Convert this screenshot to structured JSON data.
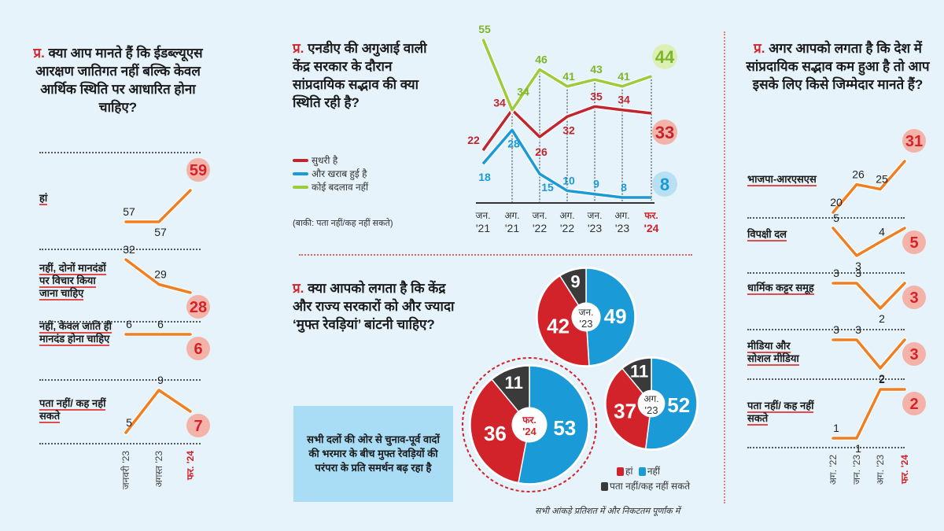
{
  "colors": {
    "red": "#d2232a",
    "orange": "#f07f22",
    "blue": "#1a9ad6",
    "green": "#9ccc3c",
    "darkred": "#b5202a",
    "grey": "#3a3a3a",
    "bubble": "#f4b3a8"
  },
  "prefix": "प्र.",
  "left": {
    "question": "क्या आप मानते हैं कि ईडब्ल्यूएस आरक्षण जातिगत नहीं बल्कि केवल आर्थिक स्थिति पर आधारित होना चाहिए?",
    "x_labels": [
      "जनवरी '23",
      "अगस्त '23",
      "फर. '24"
    ],
    "rows": [
      {
        "label": "हां",
        "values": [
          57,
          57,
          59
        ]
      },
      {
        "label": "नहीं, दोनों मानदंडों पर विचार किया जाना चाहिए",
        "values": [
          32,
          29,
          28
        ]
      },
      {
        "label": "नहीं, केवल जाति ही मानदंड होना चाहिए",
        "values": [
          6,
          6,
          6
        ]
      },
      {
        "label": "पता नहीं/ कह नहीं सकते",
        "values": [
          5,
          9,
          7
        ]
      }
    ]
  },
  "middle": {
    "question": "एनडीए की अगुआई वाली केंद्र सरकार के दौरान सांप्रदायिक सद्भाव की क्या स्थिति रही है?",
    "note": "(बाकी: पता नहीं/कह नहीं सकते)"
  },
  "chart_data": [
    {
      "type": "line",
      "x": [
        "जन. '21",
        "अग. '21",
        "जन. '22",
        "अग. '22",
        "जन. '23",
        "अग. '23",
        "फर. '24"
      ],
      "series": [
        {
          "name": "सुधरी है",
          "color": "#c0262d",
          "values": [
            22,
            34,
            26,
            32,
            35,
            34,
            33
          ]
        },
        {
          "name": "और खराब हुई है",
          "color": "#1a9ad6",
          "values": [
            18,
            28,
            15,
            10,
            9,
            8,
            8
          ]
        },
        {
          "name": "कोई बदलाव नहीं",
          "color": "#9ccc3c",
          "values": [
            55,
            34,
            46,
            41,
            43,
            41,
            44
          ]
        }
      ],
      "legend": "left",
      "grid": "vertical dotted"
    },
    {
      "type": "pie",
      "title": "क्या आपको लगता है कि केंद्र और राज्य सरकारों को और ज्यादा ‘मुफ्त रेवड़ियां’ बांटनी चाहिए?",
      "legend": [
        "हां",
        "नहीं",
        "पता नहीं/कह नहीं सकते"
      ],
      "pies": [
        {
          "period": "जन. '23",
          "haan": 42,
          "nahin": 49,
          "pata_nahin": 9
        },
        {
          "period": "अग. '23",
          "haan": 37,
          "nahin": 52,
          "pata_nahin": 11
        },
        {
          "period": "फर. '24",
          "haan": 36,
          "nahin": 53,
          "pata_nahin": 11
        }
      ]
    }
  ],
  "freebies": {
    "question": "क्या आपको लगता है कि केंद्र और राज्य सरकारों को और ज्यादा ‘मुफ्त रेवड़ियां’ बांटनी चाहिए?",
    "box": "सभी दलों की ओर से चुनाव-पूर्व वादों की भरमार के बीच मुफ्त रेवड़ियों की परंपरा के प्रति समर्थन बढ़ रहा है",
    "legend": {
      "haan": "हां",
      "nahin": "नहीं",
      "pata": "पता नहीं/कह नहीं सकते"
    },
    "footnote": "सभी आंकड़े प्रतिशत में और निकटतम पूर्णांक में"
  },
  "right": {
    "question": "अगर आपको लगता है कि देश में सांप्रदायिक सद्भाव कम हुआ है तो आप इसके लिए किसे जिम्मेदार मानते हैं?",
    "x_labels": [
      "अग. '22",
      "जन. '23",
      "अग. '23",
      "फर. '24"
    ],
    "rows": [
      {
        "label": "भाजपा-आरएसएस",
        "values": [
          20,
          26,
          25,
          31
        ]
      },
      {
        "label": "विपक्षी दल",
        "values": [
          5,
          3,
          4,
          5
        ]
      },
      {
        "label": "धार्मिक कट्टर समूह",
        "values": [
          3,
          3,
          2,
          3
        ]
      },
      {
        "label": "मीडिया और सोशल मीडिया",
        "values": [
          3,
          3,
          2,
          3
        ]
      },
      {
        "label": "पता नहीं/ कह नहीं सकते",
        "values": [
          1,
          1,
          2,
          2
        ]
      }
    ]
  }
}
